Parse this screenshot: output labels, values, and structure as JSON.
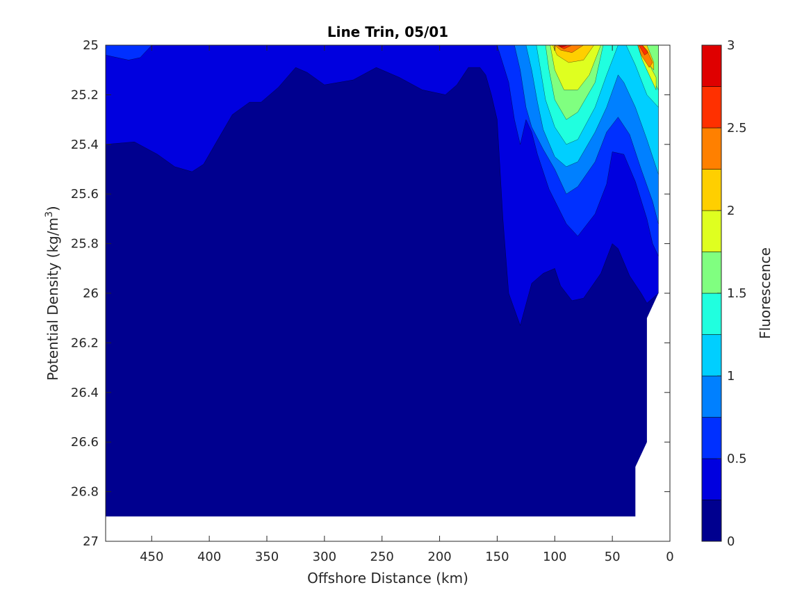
{
  "chart_data": {
    "type": "heatmap",
    "subtype": "filled-contour",
    "title": "Line Trin, 05/01",
    "xlabel": "Offshore Distance (km)",
    "ylabel": "Potential Density (kg/m",
    "ylabel_sup": "3",
    "ylabel_close": ")",
    "xlim": [
      490,
      0
    ],
    "x_reversed": true,
    "ylim": [
      25,
      27
    ],
    "y_reversed": true,
    "x_ticks": [
      450,
      400,
      350,
      300,
      250,
      200,
      150,
      100,
      50,
      0
    ],
    "x_tick_labels": [
      "450",
      "400",
      "350",
      "300",
      "250",
      "200",
      "150",
      "100",
      "50",
      "0"
    ],
    "y_ticks": [
      25,
      25.2,
      25.4,
      25.6,
      25.8,
      26,
      26.2,
      26.4,
      26.6,
      26.8,
      27
    ],
    "y_tick_labels": [
      "25",
      "25.2",
      "25.4",
      "25.6",
      "25.8",
      "26",
      "26.2",
      "26.4",
      "26.6",
      "26.8",
      "27"
    ],
    "colorbar": {
      "label": "Fluorescence",
      "range": [
        0,
        3
      ],
      "levels": [
        0,
        0.25,
        0.5,
        0.75,
        1,
        1.25,
        1.5,
        1.75,
        2,
        2.25,
        2.5,
        2.75,
        3
      ],
      "tick_values": [
        0,
        0.5,
        1,
        1.5,
        2,
        2.5,
        3
      ],
      "tick_labels": [
        "0",
        "0.5",
        "1",
        "1.5",
        "2",
        "2.5",
        "3"
      ],
      "colors": [
        "#00008f",
        "#0000df",
        "#0030ff",
        "#0080ff",
        "#00cfff",
        "#20ffdf",
        "#80ff80",
        "#dfff20",
        "#ffcf00",
        "#ff8000",
        "#ff3000",
        "#df0000"
      ]
    },
    "data_region": {
      "bottom_density_offshore": 26.9,
      "nearshore_bottom_boundary": [
        [
          10,
          26.0
        ],
        [
          20,
          26.1
        ],
        [
          20,
          26.6
        ],
        [
          30,
          26.7
        ],
        [
          30,
          26.9
        ]
      ]
    },
    "contours": [
      {
        "level": 0.25,
        "fill": "#0000df",
        "polygon": [
          [
            490,
            25
          ],
          [
            10,
            25
          ],
          [
            10,
            26.0
          ],
          [
            20,
            26.04
          ],
          [
            25,
            26.0
          ],
          [
            35,
            25.93
          ],
          [
            45,
            25.82
          ],
          [
            50,
            25.8
          ],
          [
            60,
            25.92
          ],
          [
            75,
            26.02
          ],
          [
            85,
            26.03
          ],
          [
            95,
            25.97
          ],
          [
            100,
            25.9
          ],
          [
            110,
            25.92
          ],
          [
            120,
            25.96
          ],
          [
            130,
            26.13
          ],
          [
            140,
            26.0
          ],
          [
            145,
            25.7
          ],
          [
            150,
            25.3
          ],
          [
            155,
            25.2
          ],
          [
            160,
            25.12
          ],
          [
            165,
            25.09
          ],
          [
            175,
            25.09
          ],
          [
            185,
            25.16
          ],
          [
            195,
            25.2
          ],
          [
            215,
            25.18
          ],
          [
            235,
            25.13
          ],
          [
            255,
            25.09
          ],
          [
            275,
            25.14
          ],
          [
            300,
            25.16
          ],
          [
            315,
            25.11
          ],
          [
            325,
            25.09
          ],
          [
            340,
            25.17
          ],
          [
            355,
            25.23
          ],
          [
            365,
            25.23
          ],
          [
            380,
            25.28
          ],
          [
            395,
            25.4
          ],
          [
            405,
            25.48
          ],
          [
            415,
            25.51
          ],
          [
            430,
            25.49
          ],
          [
            445,
            25.44
          ],
          [
            465,
            25.39
          ],
          [
            490,
            25.4
          ]
        ]
      },
      {
        "level": 0.5,
        "fill": "#0030ff",
        "polygon": [
          [
            490,
            25
          ],
          [
            10,
            25
          ],
          [
            10,
            25.85
          ],
          [
            15,
            25.8
          ],
          [
            20,
            25.7
          ],
          [
            30,
            25.55
          ],
          [
            40,
            25.44
          ],
          [
            50,
            25.43
          ],
          [
            55,
            25.56
          ],
          [
            65,
            25.68
          ],
          [
            80,
            25.77
          ],
          [
            90,
            25.72
          ],
          [
            105,
            25.58
          ],
          [
            115,
            25.44
          ],
          [
            120,
            25.35
          ],
          [
            125,
            25.3
          ],
          [
            130,
            25.4
          ],
          [
            135,
            25.3
          ],
          [
            140,
            25.15
          ],
          [
            150,
            25.0
          ],
          [
            450,
            25.0
          ],
          [
            460,
            25.05
          ],
          [
            470,
            25.06
          ],
          [
            490,
            25.04
          ]
        ]
      },
      {
        "level": 0.75,
        "fill": "#0080ff",
        "polygon": [
          [
            10,
            25
          ],
          [
            10,
            25.72
          ],
          [
            15,
            25.63
          ],
          [
            25,
            25.5
          ],
          [
            35,
            25.36
          ],
          [
            45,
            25.29
          ],
          [
            55,
            25.35
          ],
          [
            65,
            25.47
          ],
          [
            80,
            25.57
          ],
          [
            90,
            25.6
          ],
          [
            100,
            25.5
          ],
          [
            110,
            25.42
          ],
          [
            120,
            25.33
          ],
          [
            125,
            25.25
          ],
          [
            130,
            25.1
          ],
          [
            135,
            25.0
          ]
        ]
      },
      {
        "level": 1.0,
        "fill": "#00cfff",
        "polygon": [
          [
            10,
            25
          ],
          [
            10,
            25.52
          ],
          [
            20,
            25.38
          ],
          [
            30,
            25.25
          ],
          [
            40,
            25.15
          ],
          [
            45,
            25.12
          ],
          [
            55,
            25.25
          ],
          [
            65,
            25.35
          ],
          [
            80,
            25.47
          ],
          [
            90,
            25.49
          ],
          [
            100,
            25.45
          ],
          [
            110,
            25.34
          ],
          [
            115,
            25.23
          ],
          [
            120,
            25.1
          ],
          [
            125,
            25.0
          ]
        ]
      },
      {
        "level": 1.25,
        "fill": "#20ffdf",
        "polygon": [
          [
            10,
            25
          ],
          [
            10,
            25.25
          ],
          [
            20,
            25.2
          ],
          [
            30,
            25.08
          ],
          [
            35,
            25.03
          ],
          [
            38,
            25.0
          ],
          [
            45,
            25.0
          ],
          [
            55,
            25.12
          ],
          [
            65,
            25.25
          ],
          [
            80,
            25.38
          ],
          [
            90,
            25.4
          ],
          [
            100,
            25.33
          ],
          [
            108,
            25.22
          ],
          [
            113,
            25.08
          ],
          [
            116,
            25.0
          ]
        ]
      },
      {
        "level": 1.5,
        "fill": "#80ff80",
        "polygon": [
          [
            10,
            25
          ],
          [
            10,
            25.18
          ],
          [
            20,
            25.1
          ],
          [
            25,
            25.0
          ],
          [
            58,
            25.0
          ],
          [
            65,
            25.15
          ],
          [
            80,
            25.27
          ],
          [
            90,
            25.3
          ],
          [
            100,
            25.22
          ],
          [
            105,
            25.1
          ],
          [
            108,
            25.0
          ]
        ]
      },
      {
        "level": 1.75,
        "fill": "#dfff20",
        "polygon": [
          [
            12,
            25.13
          ],
          [
            20,
            25.06
          ],
          [
            22,
            25.0
          ],
          [
            28,
            25.0
          ],
          [
            24,
            25.06
          ],
          [
            12,
            25.18
          ]
        ]
      },
      {
        "level": 1.75,
        "fill": "#dfff20",
        "polygon": [
          [
            60,
            25.0
          ],
          [
            70,
            25.12
          ],
          [
            80,
            25.18
          ],
          [
            92,
            25.18
          ],
          [
            100,
            25.1
          ],
          [
            104,
            25.0
          ]
        ]
      },
      {
        "level": 2.0,
        "fill": "#ffcf00",
        "polygon": [
          [
            14,
            25.07
          ],
          [
            20,
            25.0
          ],
          [
            28,
            25.0
          ],
          [
            22,
            25.06
          ],
          [
            14,
            25.1
          ]
        ]
      },
      {
        "level": 2.0,
        "fill": "#ffcf00",
        "polygon": [
          [
            66,
            25.0
          ],
          [
            75,
            25.06
          ],
          [
            88,
            25.07
          ],
          [
            98,
            25.04
          ],
          [
            102,
            25.0
          ]
        ]
      },
      {
        "level": 2.25,
        "fill": "#ff8000",
        "polygon": [
          [
            15,
            25.07
          ],
          [
            20,
            25.02
          ],
          [
            24,
            25.0
          ],
          [
            28,
            25.0
          ],
          [
            25,
            25.04
          ],
          [
            18,
            25.09
          ]
        ]
      },
      {
        "level": 2.25,
        "fill": "#ff8000",
        "polygon": [
          [
            75,
            25.0
          ],
          [
            85,
            25.03
          ],
          [
            95,
            25.02
          ],
          [
            100,
            25.0
          ]
        ]
      },
      {
        "level": 2.5,
        "fill": "#ff3000",
        "polygon": [
          [
            19,
            25.03
          ],
          [
            24,
            25.0
          ],
          [
            27,
            25.0
          ],
          [
            22,
            25.04
          ]
        ]
      },
      {
        "level": 2.5,
        "fill": "#ff3000",
        "polygon": [
          [
            85,
            25.0
          ],
          [
            92,
            25.015
          ],
          [
            98,
            25.0
          ]
        ]
      },
      {
        "level": 2.75,
        "fill": "#df0000",
        "polygon": [
          [
            89,
            25.0
          ],
          [
            94,
            25.008
          ],
          [
            97,
            25.0
          ]
        ]
      }
    ]
  }
}
